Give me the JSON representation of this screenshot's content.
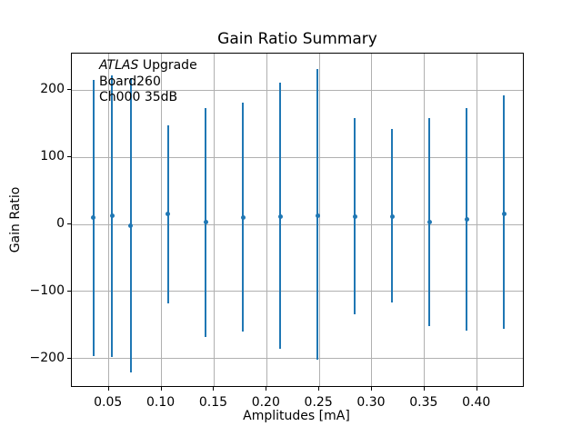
{
  "title": "Gain Ratio Summary",
  "annotation": {
    "experiment": "ATLAS",
    "line1_rest": " Upgrade",
    "line2": "Board260",
    "line3": "Ch000 35dB"
  },
  "colors": {
    "series": "#1f77b4",
    "grid": "#b0b0b0",
    "spine": "#000000",
    "text": "#000000",
    "background": "#ffffff"
  },
  "chart_data": {
    "type": "scatter",
    "subtype": "errorbar",
    "title": "Gain Ratio Summary",
    "xlabel": "Amplitudes [mA]",
    "ylabel": "Gain Ratio",
    "grid": true,
    "legend": false,
    "xlim": [
      0.0148,
      0.4452
    ],
    "ylim": [
      -243.6,
      254.6
    ],
    "xticks": [
      0.05,
      0.1,
      0.15,
      0.2,
      0.25,
      0.3,
      0.35,
      0.4
    ],
    "xtick_labels": [
      "0.05",
      "0.10",
      "0.15",
      "0.20",
      "0.25",
      "0.30",
      "0.35",
      "0.40"
    ],
    "yticks": [
      -200,
      -100,
      0,
      100,
      200
    ],
    "ytick_labels": [
      "−200",
      "−100",
      "0",
      "100",
      "200"
    ],
    "series": [
      {
        "name": "gain-ratio-errorbar",
        "marker": "point",
        "color": "#1f77b4",
        "x": [
          0.0355,
          0.0532,
          0.0709,
          0.1064,
          0.1419,
          0.1773,
          0.2128,
          0.2483,
          0.2837,
          0.3192,
          0.3547,
          0.3902,
          0.4256
        ],
        "y": [
          10,
          13,
          -2,
          15,
          3,
          10,
          12,
          13,
          12,
          11,
          4,
          8,
          16
        ],
        "y_upper": [
          216,
          222,
          218,
          148,
          174,
          182,
          211,
          232,
          159,
          142,
          159,
          173,
          192
        ],
        "y_lower": [
          -196,
          -197,
          -221,
          -118,
          -168,
          -160,
          -185,
          -201,
          -134,
          -116,
          -151,
          -158,
          -156
        ]
      }
    ]
  }
}
